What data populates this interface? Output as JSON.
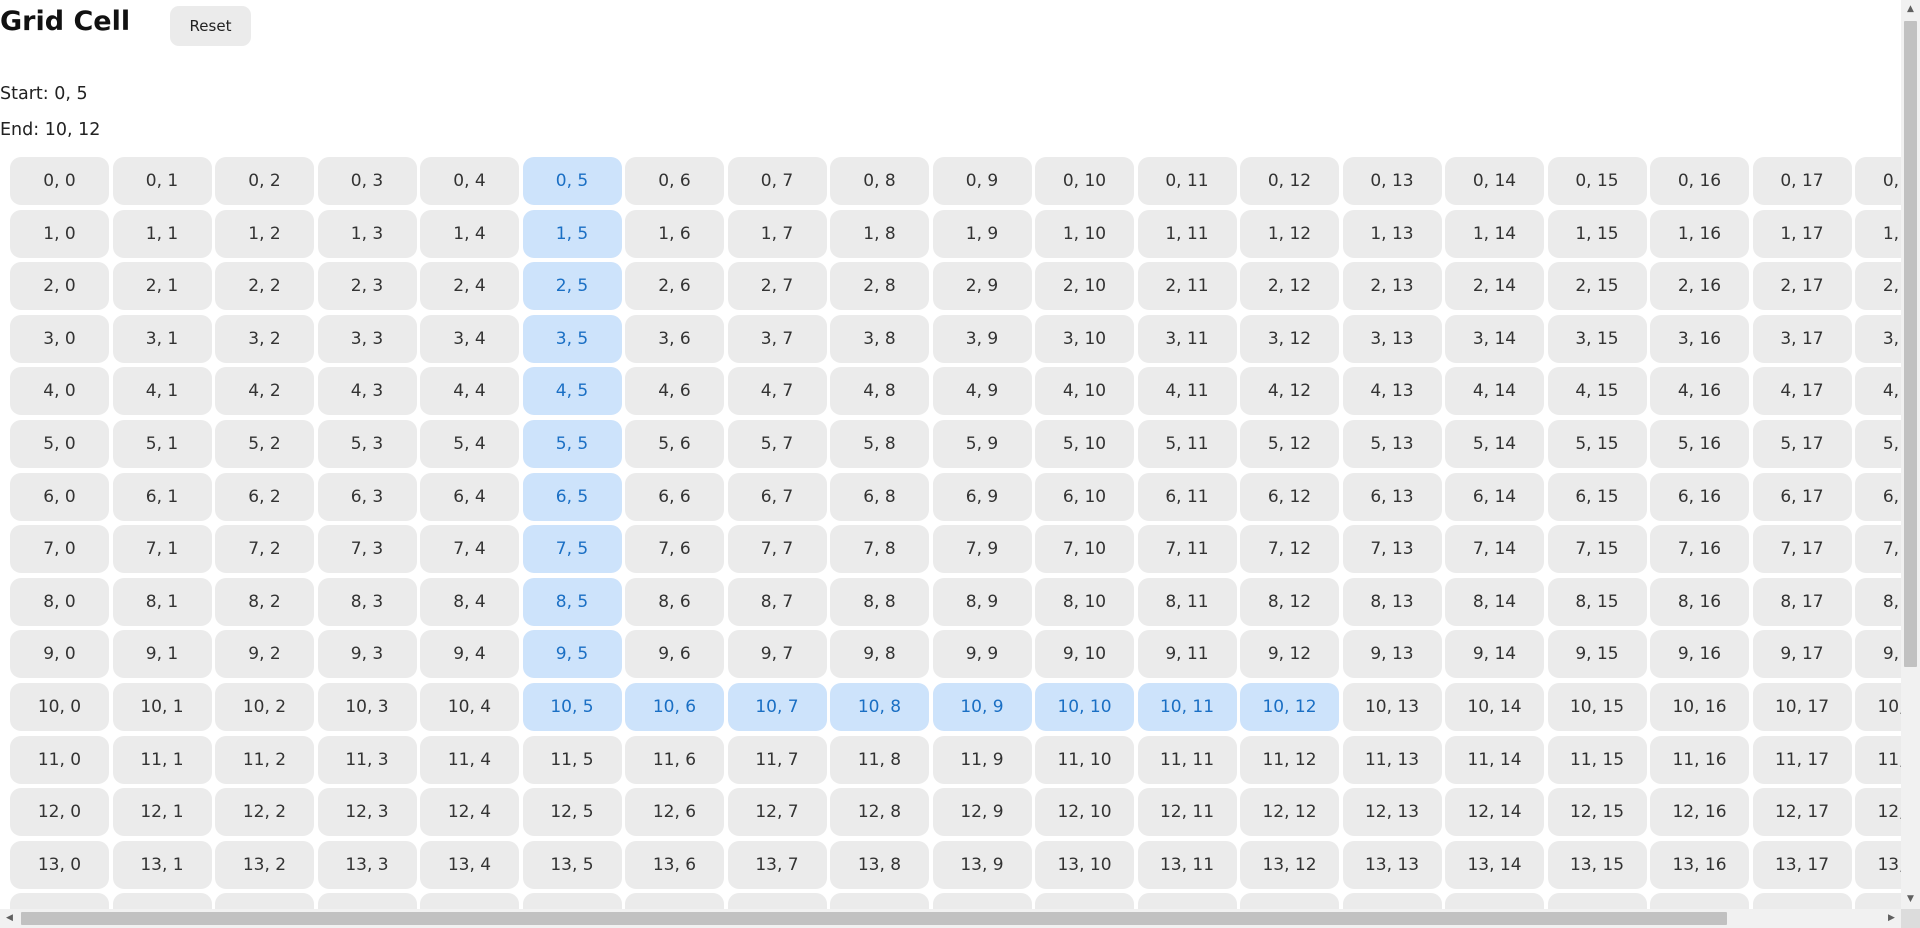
{
  "header": {
    "title": "Grid Cell",
    "reset_label": "Reset"
  },
  "status": {
    "start_text": "Start: 0, 5",
    "end_text": "End: 10, 12"
  },
  "grid": {
    "visible_rows": 15,
    "visible_cols": 19,
    "start": [
      0,
      5
    ],
    "end": [
      10,
      12
    ],
    "selected_path": [
      [
        0,
        5
      ],
      [
        1,
        5
      ],
      [
        2,
        5
      ],
      [
        3,
        5
      ],
      [
        4,
        5
      ],
      [
        5,
        5
      ],
      [
        6,
        5
      ],
      [
        7,
        5
      ],
      [
        8,
        5
      ],
      [
        9,
        5
      ],
      [
        10,
        5
      ],
      [
        10,
        6
      ],
      [
        10,
        7
      ],
      [
        10,
        8
      ],
      [
        10,
        9
      ],
      [
        10,
        10
      ],
      [
        10,
        11
      ],
      [
        10,
        12
      ]
    ],
    "cell_bg": "#ebebeb",
    "selected_bg": "#cde3fb",
    "selected_text_color": "#1a6fc4"
  },
  "scrollbars": {
    "vertical": {
      "up_icon": "arrow-up-icon",
      "down_icon": "arrow-down-icon"
    },
    "horizontal": {
      "left_icon": "arrow-left-icon",
      "right_icon": "arrow-right-icon"
    }
  }
}
